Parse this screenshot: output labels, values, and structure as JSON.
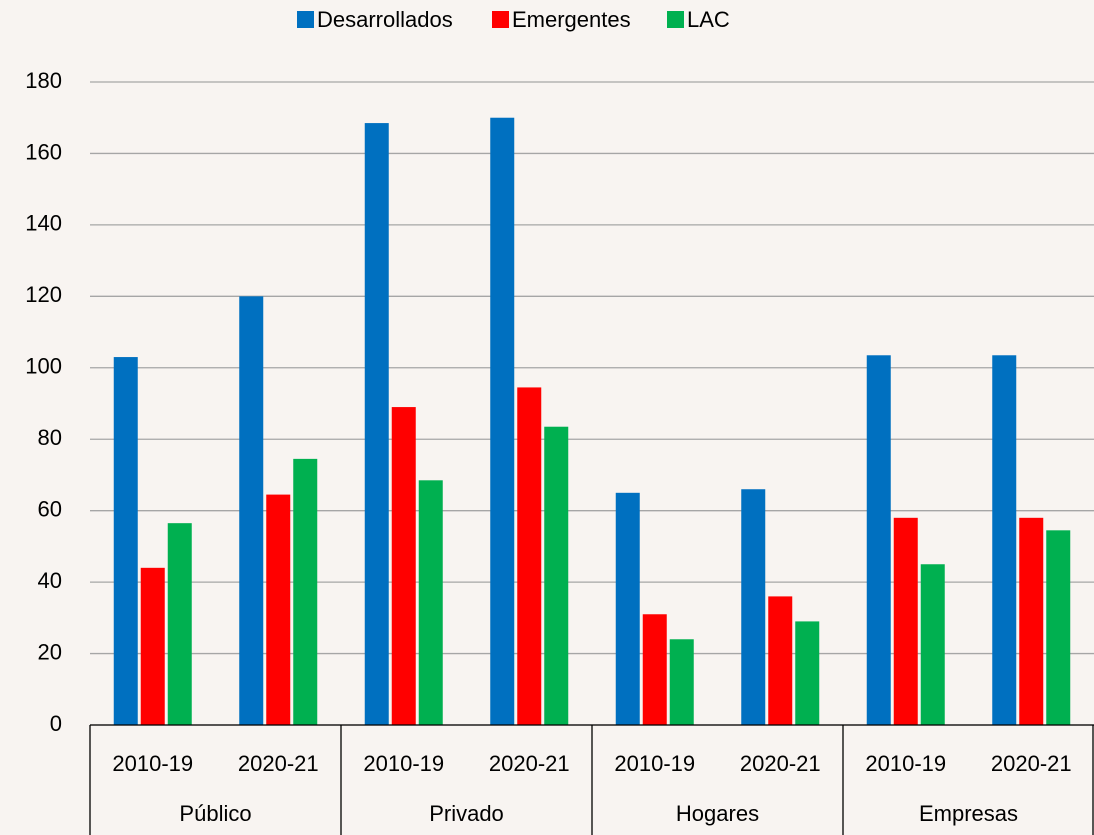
{
  "chart_data": {
    "type": "bar",
    "categories": [
      "2010-19",
      "2020-21",
      "2010-19",
      "2020-21",
      "2010-19",
      "2020-21",
      "2010-19",
      "2020-21"
    ],
    "groups": [
      "Público",
      "Privado",
      "Hogares",
      "Empresas"
    ],
    "series": [
      {
        "name": "Desarrollados",
        "color": "#0070c0",
        "values": [
          103,
          120,
          168.5,
          170,
          65,
          66,
          103.5,
          103.5
        ]
      },
      {
        "name": "Emergentes",
        "color": "#ff0000",
        "values": [
          44,
          64.5,
          89,
          94.5,
          31,
          36,
          58,
          58
        ]
      },
      {
        "name": "LAC",
        "color": "#00b050",
        "values": [
          56.5,
          74.5,
          68.5,
          83.5,
          24,
          29,
          45,
          54.5
        ]
      }
    ],
    "ylim": [
      0,
      180
    ],
    "yticks": [
      0,
      20,
      40,
      60,
      80,
      100,
      120,
      140,
      160,
      180
    ],
    "grid": true,
    "legend": "top"
  }
}
